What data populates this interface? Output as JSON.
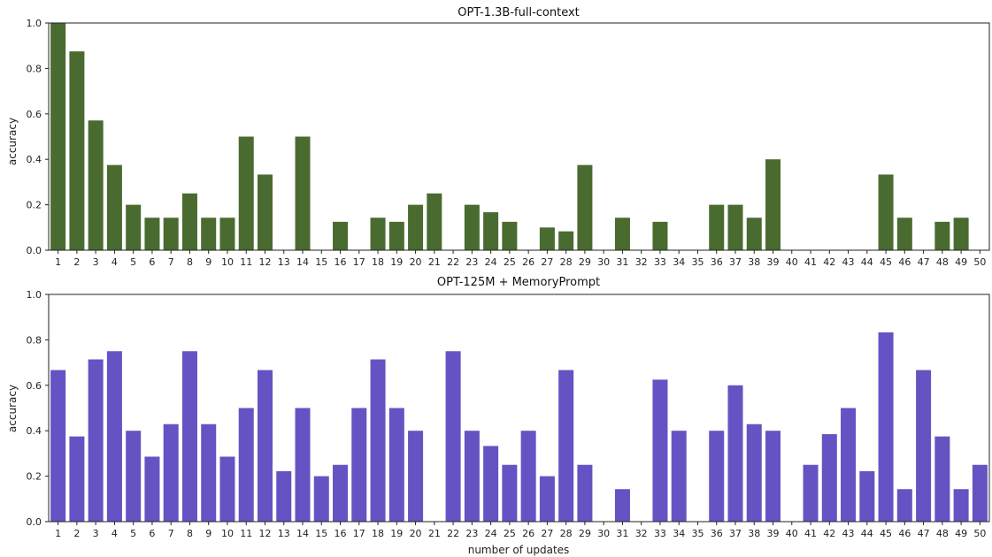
{
  "chart_data": [
    {
      "type": "bar",
      "title": "OPT-1.3B-full-context",
      "xlabel": "",
      "ylabel": "accuracy",
      "color": "#4a6b2f",
      "ylim": [
        0,
        1.0
      ],
      "yticks": [
        "0.0",
        "0.2",
        "0.4",
        "0.6",
        "0.8",
        "1.0"
      ],
      "categories": [
        "1",
        "2",
        "3",
        "4",
        "5",
        "6",
        "7",
        "8",
        "9",
        "10",
        "11",
        "12",
        "13",
        "14",
        "15",
        "16",
        "17",
        "18",
        "19",
        "20",
        "21",
        "22",
        "23",
        "24",
        "25",
        "26",
        "27",
        "28",
        "29",
        "30",
        "31",
        "32",
        "33",
        "34",
        "35",
        "36",
        "37",
        "38",
        "39",
        "40",
        "41",
        "42",
        "43",
        "44",
        "45",
        "46",
        "47",
        "48",
        "49",
        "50"
      ],
      "values": [
        1.0,
        0.875,
        0.571,
        0.375,
        0.2,
        0.143,
        0.143,
        0.25,
        0.143,
        0.143,
        0.5,
        0.333,
        0,
        0.5,
        0,
        0.125,
        0,
        0.143,
        0.125,
        0.2,
        0.25,
        0,
        0.2,
        0.167,
        0.125,
        0,
        0.1,
        0.083,
        0.375,
        0,
        0.143,
        0,
        0.125,
        0,
        0,
        0.2,
        0.2,
        0.143,
        0.4,
        0,
        0,
        0,
        0,
        0,
        0.333,
        0.143,
        0,
        0.125,
        0.143,
        0
      ],
      "grid": false
    },
    {
      "type": "bar",
      "title": "OPT-125M + MemoryPrompt",
      "xlabel": "number of updates",
      "ylabel": "accuracy",
      "color": "#6553c3",
      "ylim": [
        0,
        1.0
      ],
      "yticks": [
        "0.0",
        "0.2",
        "0.4",
        "0.6",
        "0.8",
        "1.0"
      ],
      "categories": [
        "1",
        "2",
        "3",
        "4",
        "5",
        "6",
        "7",
        "8",
        "9",
        "10",
        "11",
        "12",
        "13",
        "14",
        "15",
        "16",
        "17",
        "18",
        "19",
        "20",
        "21",
        "22",
        "23",
        "24",
        "25",
        "26",
        "27",
        "28",
        "29",
        "30",
        "31",
        "32",
        "33",
        "34",
        "35",
        "36",
        "37",
        "38",
        "39",
        "40",
        "41",
        "42",
        "43",
        "44",
        "45",
        "46",
        "47",
        "48",
        "49",
        "50"
      ],
      "values": [
        0.667,
        0.375,
        0.714,
        0.75,
        0.4,
        0.286,
        0.429,
        0.75,
        0.429,
        0.286,
        0.5,
        0.667,
        0.222,
        0.5,
        0.2,
        0.25,
        0.5,
        0.714,
        0.5,
        0.4,
        0,
        0.75,
        0.4,
        0.333,
        0.25,
        0.4,
        0.2,
        0.667,
        0.25,
        0,
        0.143,
        0,
        0.625,
        0.4,
        0,
        0.4,
        0.6,
        0.429,
        0.4,
        0,
        0.25,
        0.385,
        0.5,
        0.222,
        0.833,
        0.143,
        0.667,
        0.375,
        0.143,
        0.25
      ],
      "grid": false
    }
  ]
}
